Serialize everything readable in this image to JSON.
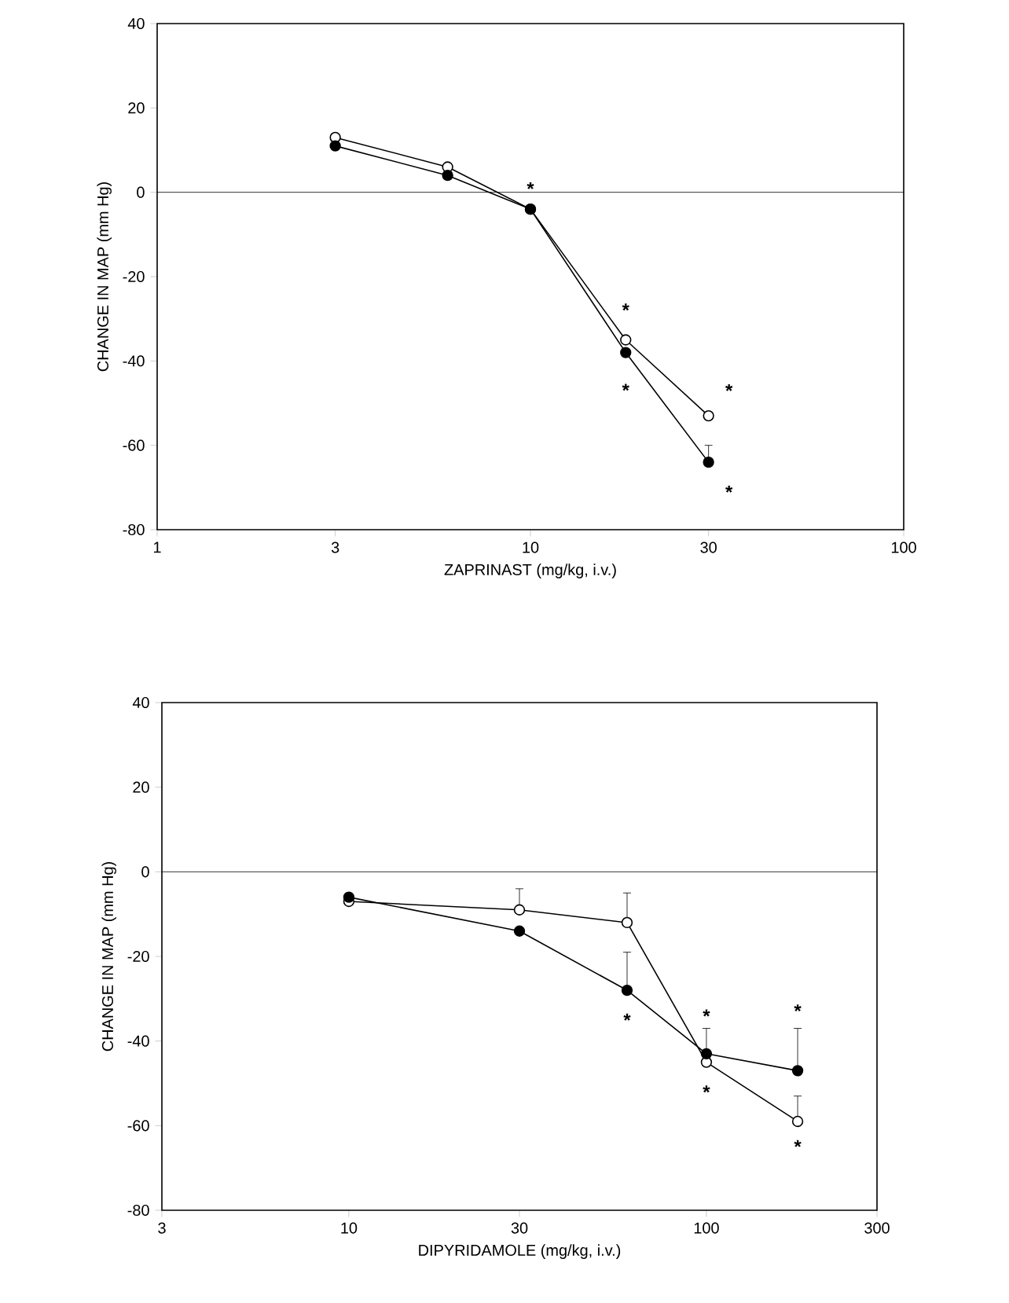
{
  "chart_data": [
    {
      "type": "line",
      "xlabel": "ZAPRINAST (mg/kg, i.v.)",
      "ylabel": "CHANGE IN MAP (mm Hg)",
      "log": "x",
      "marker": "circle",
      "line_style": "solid",
      "xlim": [
        1,
        100
      ],
      "xticks": [
        1,
        3,
        10,
        30,
        100
      ],
      "ylim": [
        -80,
        40
      ],
      "yticks": [
        -80,
        -60,
        -40,
        -20,
        0,
        20,
        40
      ],
      "ref_lines": [
        {
          "axis": "y",
          "value": 0,
          "color": "#000000"
        }
      ],
      "series": [
        {
          "color": "#ffffff",
          "x": [
            3,
            6,
            10,
            18,
            30
          ],
          "values": [
            13,
            6,
            -4,
            -35,
            -53
          ]
        },
        {
          "color": "#000000",
          "x": [
            3,
            6,
            10,
            18,
            30
          ],
          "values": [
            11,
            4,
            -4,
            -38,
            -64
          ],
          "errors": [
            null,
            null,
            null,
            null,
            [
              -64,
              -60
            ]
          ]
        }
      ],
      "annotations": [
        "*",
        "*",
        "*",
        "*",
        "*"
      ]
    },
    {
      "type": "line",
      "xlabel": "DIPYRIDAMOLE (mg/kg, i.v.)",
      "ylabel": "CHANGE IN MAP (mm Hg)",
      "log": "x",
      "marker": "circle",
      "line_style": "solid",
      "xlim": [
        3,
        300
      ],
      "xticks": [
        3,
        10,
        30,
        100,
        300
      ],
      "ylim": [
        -80,
        40
      ],
      "yticks": [
        -80,
        -60,
        -40,
        -20,
        0,
        20,
        40
      ],
      "ref_lines": [
        {
          "axis": "y",
          "value": 0,
          "color": "#000000"
        }
      ],
      "series": [
        {
          "color": "#ffffff",
          "x": [
            10,
            30,
            60,
            100,
            180
          ],
          "values": [
            -7,
            -9,
            -12,
            -45,
            -59
          ],
          "errors": [
            null,
            [
              -9,
              -4
            ],
            [
              -12,
              -5
            ],
            null,
            [
              -59,
              -53
            ]
          ]
        },
        {
          "color": "#000000",
          "x": [
            10,
            30,
            60,
            100,
            180
          ],
          "values": [
            -6,
            -14,
            -28,
            -43,
            -47
          ],
          "errors": [
            null,
            null,
            [
              -28,
              -19
            ],
            [
              -43,
              -37
            ],
            [
              -47,
              -37
            ]
          ]
        }
      ],
      "annotations": [
        "*",
        "*",
        "*",
        "*",
        "*"
      ]
    }
  ]
}
